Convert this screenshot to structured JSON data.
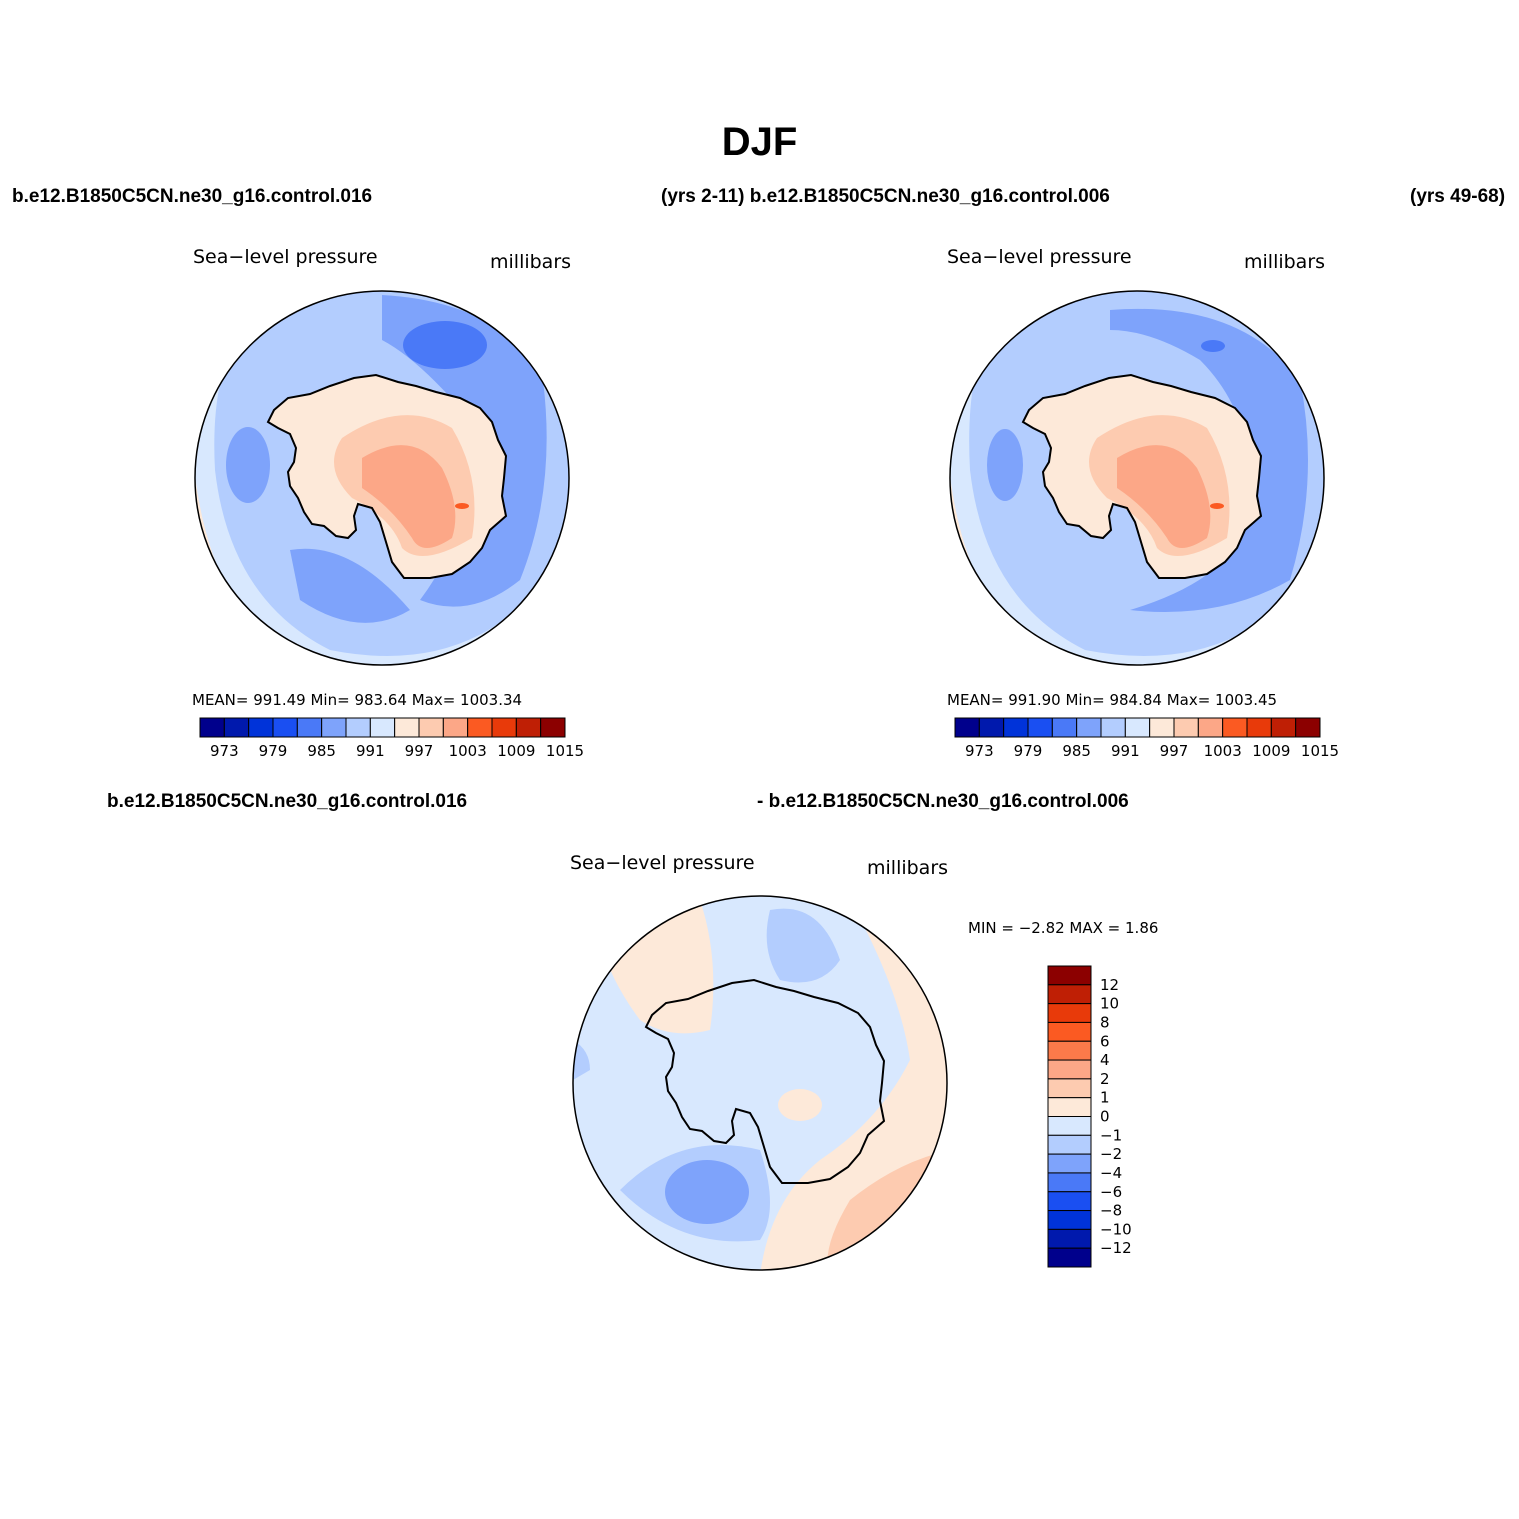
{
  "title": "DJF",
  "header": {
    "case_a": "b.e12.B1850C5CN.ne30_g16.control.016",
    "years_a_case_b": "(yrs 2-11) b.e12.B1850C5CN.ne30_g16.control.006",
    "years_b": "(yrs 49-68)",
    "diff_case_a": "b.e12.B1850C5CN.ne30_g16.control.016",
    "diff_case_b": "- b.e12.B1850C5CN.ne30_g16.control.006"
  },
  "panels": [
    {
      "variable": "Sea−level pressure",
      "units": "millibars",
      "stats": "MEAN=  991.49    Min=  983.64    Max=  1003.34"
    },
    {
      "variable": "Sea−level pressure",
      "units": "millibars",
      "stats": "MEAN=  991.90    Min=  984.84    Max=  1003.45"
    },
    {
      "variable": "Sea−level pressure",
      "units": "millibars",
      "stats": "MIN =    −2.82  MAX =     1.86"
    }
  ],
  "colorbar_abs": {
    "colors": [
      "#00008c",
      "#0019ad",
      "#0033d9",
      "#1a4ff2",
      "#4a79f7",
      "#7ea3fb",
      "#b3cdfe",
      "#d8e8fe",
      "#fde9d9",
      "#fdcbb0",
      "#fca787",
      "#fb5a22",
      "#e83a0a",
      "#bf1f05",
      "#8c0000"
    ],
    "tick_labels": [
      "973",
      "979",
      "985",
      "991",
      "997",
      "1003",
      "1009",
      "1015"
    ]
  },
  "colorbar_diff": {
    "colors": [
      "#00008c",
      "#0019ad",
      "#0033d9",
      "#1a4ff2",
      "#4a79f7",
      "#7ea3fb",
      "#b3cdfe",
      "#d8e8fe",
      "#fde9d9",
      "#fdcbb0",
      "#fca787",
      "#fb7a4a",
      "#fb5a22",
      "#e83a0a",
      "#bf1f05",
      "#8c0000"
    ],
    "tick_labels": [
      "12",
      "10",
      "8",
      "6",
      "4",
      "2",
      "1",
      "0",
      "−1",
      "−2",
      "−4",
      "−6",
      "−8",
      "−10",
      "−12"
    ]
  }
}
